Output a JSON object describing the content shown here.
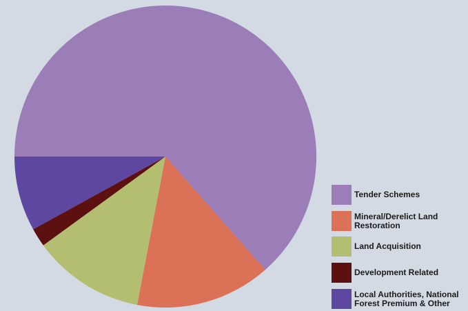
{
  "chart_data": {
    "type": "pie",
    "legend_position": "bottom-right",
    "slices": [
      {
        "label": "Tender Schemes",
        "value": 63.5,
        "color": "#9b7db7"
      },
      {
        "label": "Mineral/Derelict Land\nRestoration",
        "value": 14.5,
        "color": "#db7258"
      },
      {
        "label": "Land Acquisition",
        "value": 12.0,
        "color": "#b3be70"
      },
      {
        "label": "Development Related",
        "value": 2.0,
        "color": "#5c1010"
      },
      {
        "label": "Local Authorities, National\nForest Premium & Other",
        "value": 8.0,
        "color": "#5d47a0"
      }
    ]
  }
}
